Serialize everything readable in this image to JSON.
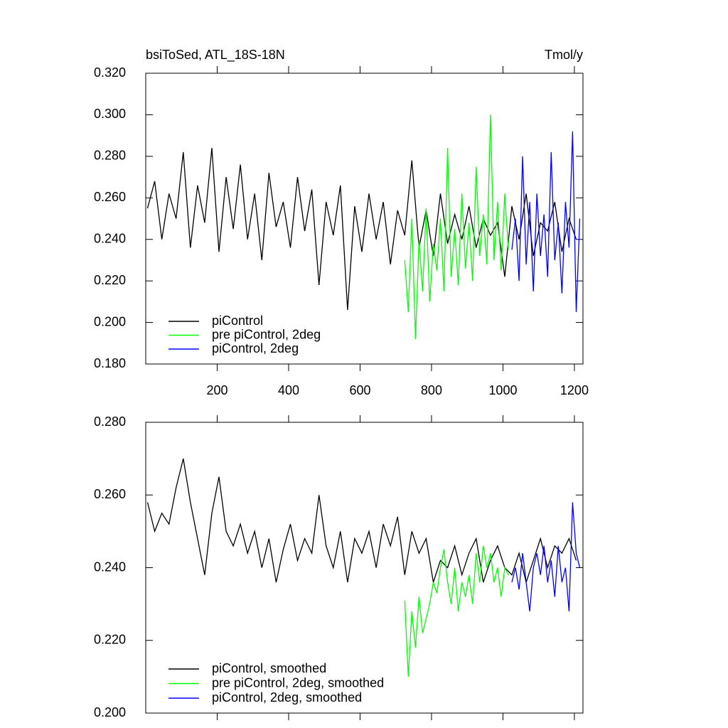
{
  "chart_data": [
    {
      "type": "line",
      "title": "bsiToSed, ATL_18S-18N",
      "units": "Tmol/y",
      "xlim": [
        0,
        1224
      ],
      "xticks": [
        200,
        400,
        600,
        800,
        1000,
        1200
      ],
      "ylim": [
        0.18,
        0.32
      ],
      "yticks": [
        {
          "value": 0.18,
          "label": "0.180"
        },
        {
          "value": 0.2,
          "label": "0.200"
        },
        {
          "value": 0.22,
          "label": "0.220"
        },
        {
          "value": 0.24,
          "label": "0.240"
        },
        {
          "value": 0.26,
          "label": "0.260"
        },
        {
          "value": 0.28,
          "label": "0.280"
        },
        {
          "value": 0.3,
          "label": "0.300"
        },
        {
          "value": 0.32,
          "label": "0.320"
        }
      ],
      "series": [
        {
          "name": "piControl",
          "color": "#000000",
          "x": [
            5,
            25,
            45,
            65,
            85,
            105,
            125,
            145,
            165,
            185,
            205,
            225,
            245,
            265,
            285,
            305,
            325,
            345,
            365,
            385,
            405,
            425,
            445,
            465,
            485,
            505,
            525,
            545,
            565,
            585,
            605,
            625,
            645,
            665,
            685,
            705,
            725,
            745,
            765,
            785,
            805,
            825,
            845,
            865,
            885,
            905,
            925,
            945,
            965,
            985,
            1005,
            1025,
            1045,
            1065,
            1085,
            1105,
            1125,
            1145,
            1165,
            1185,
            1205
          ],
          "values": [
            0.255,
            0.268,
            0.24,
            0.262,
            0.25,
            0.282,
            0.236,
            0.266,
            0.248,
            0.284,
            0.234,
            0.27,
            0.245,
            0.276,
            0.24,
            0.262,
            0.23,
            0.272,
            0.246,
            0.258,
            0.236,
            0.27,
            0.244,
            0.264,
            0.218,
            0.258,
            0.242,
            0.266,
            0.206,
            0.256,
            0.234,
            0.262,
            0.24,
            0.258,
            0.228,
            0.254,
            0.242,
            0.278,
            0.236,
            0.254,
            0.232,
            0.262,
            0.238,
            0.252,
            0.24,
            0.256,
            0.236,
            0.25,
            0.242,
            0.248,
            0.222,
            0.256,
            0.24,
            0.262,
            0.232,
            0.248,
            0.244,
            0.258,
            0.234,
            0.25,
            0.24
          ]
        },
        {
          "name": "pre piControl, 2deg",
          "color": "#00ff00",
          "x": [
            725,
            735,
            745,
            755,
            765,
            775,
            785,
            795,
            805,
            815,
            825,
            835,
            845,
            855,
            865,
            875,
            885,
            895,
            905,
            915,
            925,
            935,
            945,
            955,
            965,
            975,
            985,
            995,
            1005,
            1015
          ],
          "values": [
            0.23,
            0.205,
            0.25,
            0.192,
            0.24,
            0.215,
            0.255,
            0.21,
            0.238,
            0.225,
            0.25,
            0.215,
            0.284,
            0.222,
            0.245,
            0.218,
            0.262,
            0.226,
            0.248,
            0.22,
            0.275,
            0.232,
            0.252,
            0.228,
            0.3,
            0.23,
            0.258,
            0.225,
            0.262,
            0.235
          ]
        },
        {
          "name": "piControl, 2deg",
          "color": "#0000ff",
          "x": [
            1025,
            1035,
            1045,
            1055,
            1065,
            1075,
            1085,
            1095,
            1105,
            1115,
            1125,
            1135,
            1145,
            1155,
            1165,
            1175,
            1185,
            1195,
            1205,
            1215
          ],
          "values": [
            0.235,
            0.25,
            0.22,
            0.28,
            0.228,
            0.258,
            0.215,
            0.262,
            0.232,
            0.252,
            0.222,
            0.282,
            0.23,
            0.248,
            0.214,
            0.258,
            0.236,
            0.292,
            0.205,
            0.25
          ]
        }
      ]
    },
    {
      "type": "line",
      "xlim": [
        0,
        1224
      ],
      "ylim": [
        0.2,
        0.28
      ],
      "yticks": [
        {
          "value": 0.2,
          "label": "0.200"
        },
        {
          "value": 0.22,
          "label": "0.220"
        },
        {
          "value": 0.24,
          "label": "0.240"
        },
        {
          "value": 0.26,
          "label": "0.260"
        },
        {
          "value": 0.28,
          "label": "0.280"
        }
      ],
      "series": [
        {
          "name": "piControl, smoothed",
          "color": "#000000",
          "x": [
            5,
            25,
            45,
            65,
            85,
            105,
            125,
            145,
            165,
            185,
            205,
            225,
            245,
            265,
            285,
            305,
            325,
            345,
            365,
            385,
            405,
            425,
            445,
            465,
            485,
            505,
            525,
            545,
            565,
            585,
            605,
            625,
            645,
            665,
            685,
            705,
            725,
            745,
            765,
            785,
            805,
            825,
            845,
            865,
            885,
            905,
            925,
            945,
            965,
            985,
            1005,
            1025,
            1045,
            1065,
            1085,
            1105,
            1125,
            1145,
            1165,
            1185,
            1205
          ],
          "values": [
            0.258,
            0.25,
            0.255,
            0.252,
            0.262,
            0.27,
            0.258,
            0.248,
            0.238,
            0.255,
            0.265,
            0.25,
            0.246,
            0.252,
            0.244,
            0.25,
            0.24,
            0.248,
            0.236,
            0.245,
            0.252,
            0.242,
            0.248,
            0.244,
            0.26,
            0.246,
            0.24,
            0.25,
            0.236,
            0.248,
            0.244,
            0.25,
            0.24,
            0.252,
            0.246,
            0.254,
            0.238,
            0.25,
            0.244,
            0.248,
            0.236,
            0.242,
            0.24,
            0.246,
            0.238,
            0.244,
            0.248,
            0.236,
            0.242,
            0.246,
            0.24,
            0.238,
            0.244,
            0.236,
            0.242,
            0.248,
            0.24,
            0.246,
            0.244,
            0.248,
            0.242
          ]
        },
        {
          "name": "pre piControl, 2deg, smoothed",
          "color": "#00ff00",
          "x": [
            725,
            735,
            745,
            755,
            765,
            775,
            785,
            795,
            805,
            815,
            825,
            835,
            845,
            855,
            865,
            875,
            885,
            895,
            905,
            915,
            925,
            935,
            945,
            955,
            965,
            975,
            985,
            995,
            1005,
            1015
          ],
          "values": [
            0.231,
            0.21,
            0.228,
            0.218,
            0.232,
            0.222,
            0.226,
            0.23,
            0.236,
            0.233,
            0.24,
            0.245,
            0.236,
            0.23,
            0.24,
            0.228,
            0.236,
            0.232,
            0.238,
            0.23,
            0.244,
            0.236,
            0.246,
            0.24,
            0.244,
            0.236,
            0.24,
            0.232,
            0.24,
            0.238
          ]
        },
        {
          "name": "piControl, 2deg, smoothed",
          "color": "#0000ff",
          "x": [
            1025,
            1035,
            1045,
            1055,
            1065,
            1075,
            1085,
            1095,
            1105,
            1115,
            1125,
            1135,
            1145,
            1155,
            1165,
            1175,
            1185,
            1195,
            1205,
            1215
          ],
          "values": [
            0.236,
            0.24,
            0.234,
            0.244,
            0.236,
            0.228,
            0.24,
            0.244,
            0.238,
            0.246,
            0.236,
            0.242,
            0.232,
            0.246,
            0.236,
            0.24,
            0.228,
            0.258,
            0.244,
            0.24
          ]
        }
      ]
    }
  ]
}
